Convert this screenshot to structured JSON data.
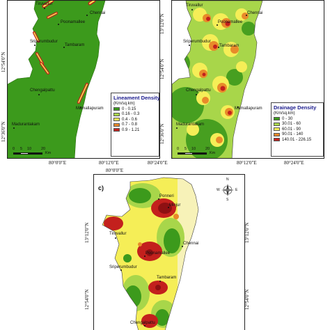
{
  "panels": {
    "a": {
      "towns": [
        "Tiruvallur",
        "Chennai",
        "Poonamallee",
        "Sriperumbudur",
        "Tambaram",
        "Chengalpattu",
        "Mamallapuram",
        "Madurantakam"
      ],
      "legend": {
        "title": "Lineament Density",
        "unit": "(Km/sq.km)",
        "classes": [
          {
            "label": "0 - 0.15",
            "color": "#3c9a1c"
          },
          {
            "label": "0.16 - 0.3",
            "color": "#a8d64a"
          },
          {
            "label": "0.4 - 0.6",
            "color": "#f5ee57"
          },
          {
            "label": "0.7 - 0.8",
            "color": "#e88a2a"
          },
          {
            "label": "0.9 - 1.21",
            "color": "#c3201d"
          }
        ]
      },
      "scale": {
        "ticks": [
          "0",
          "5",
          "10",
          "20"
        ],
        "unit": "Km"
      }
    },
    "b": {
      "towns": [
        "Tiruvallur",
        "Chennai",
        "Poonamallee",
        "Sriperumbudur",
        "Tambaram",
        "Chengalpattu",
        "Mamallapuram",
        "Madurantakam"
      ],
      "legend": {
        "title": "Drainage Density",
        "unit": "(Km/sq.km)",
        "classes": [
          {
            "label": "0 - 30",
            "color": "#3c9a1c"
          },
          {
            "label": "30.01 - 60",
            "color": "#a8d64a"
          },
          {
            "label": "60.01 - 90",
            "color": "#f5ee57"
          },
          {
            "label": "90.01 - 140",
            "color": "#e88a2a"
          },
          {
            "label": "140.01 - 226.15",
            "color": "#c3201d"
          }
        ]
      },
      "scale": {
        "ticks": [
          "0",
          "5",
          "10",
          "20"
        ],
        "unit": "Km"
      }
    },
    "c": {
      "letter": "c)",
      "towns": [
        "Ponneri",
        "Minjur",
        "Tiruvallur",
        "Chennai",
        "Poonamallee",
        "Sriperumbudur",
        "Tambaram",
        "Chengalpattu"
      ],
      "north_arrow": {
        "n": "N",
        "s": "S",
        "e": "E",
        "w": "W"
      }
    }
  },
  "axes": {
    "top_left_x": [
      "80°0'0\"E",
      "80°12'0\"E"
    ],
    "top_right_x": [
      "80°24'0\"E",
      "80°12'0\"E",
      "80°24'0\"E"
    ],
    "top_left_y": [
      "12°54'0\"N",
      "12°36'0\"N"
    ],
    "top_right_y": [
      "13°12'0\"N",
      "12°54'0\"N",
      "12°36'0\"N"
    ],
    "bottom_x": [
      "80°0'0\"E"
    ],
    "bottom_left_y": [
      "13°12'0\"N",
      "12°54'0\"N"
    ],
    "bottom_right_y": [
      "13°12'0\"N",
      "12°54'0\"N"
    ]
  },
  "colors": {
    "green": "#3c9a1c",
    "light_green": "#a8d64a",
    "yellow": "#f5ee57",
    "orange": "#e88a2a",
    "red": "#c3201d",
    "dark_red": "#8e1012",
    "cream": "#f7f2b8"
  }
}
